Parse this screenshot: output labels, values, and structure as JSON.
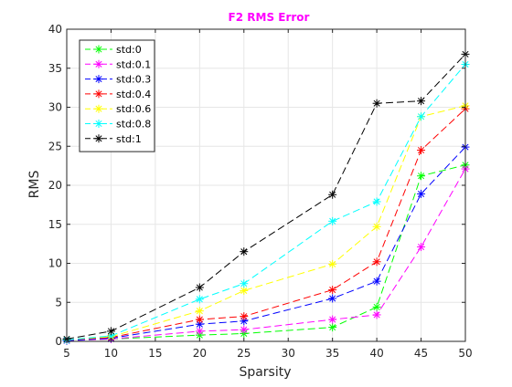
{
  "chart_data": {
    "type": "line",
    "title": "F2 RMS Error",
    "xlabel": "Sparsity",
    "ylabel": "RMS",
    "xlim": [
      5,
      50
    ],
    "ylim": [
      0,
      40
    ],
    "x_ticks": [
      5,
      10,
      15,
      20,
      25,
      30,
      35,
      40,
      45,
      50
    ],
    "y_ticks": [
      0,
      5,
      10,
      15,
      20,
      25,
      30,
      35,
      40
    ],
    "x_tick_labels": [
      "5",
      "10",
      "15",
      "20",
      "25",
      "30",
      "35",
      "40",
      "45",
      "50"
    ],
    "y_tick_labels": [
      "0",
      "5",
      "10",
      "15",
      "20",
      "25",
      "30",
      "35",
      "40"
    ],
    "grid": true,
    "legend_position": "top-left",
    "line_style": "dashed",
    "marker": "asterisk",
    "title_color": "#ff00ff",
    "x": [
      5,
      10,
      20,
      25,
      35,
      40,
      45,
      50
    ],
    "series": [
      {
        "name": "std:0",
        "color": "#00ff00",
        "values": [
          0.1,
          0.3,
          0.8,
          1.0,
          1.8,
          4.4,
          21.2,
          22.6
        ]
      },
      {
        "name": "std:0.1",
        "color": "#ff00ff",
        "values": [
          0.1,
          0.3,
          1.3,
          1.5,
          2.8,
          3.4,
          12.1,
          22.1
        ]
      },
      {
        "name": "std:0.3",
        "color": "#0000ff",
        "values": [
          0.1,
          0.4,
          2.2,
          2.6,
          5.5,
          7.7,
          18.9,
          24.9
        ]
      },
      {
        "name": "std:0.4",
        "color": "#ff0000",
        "values": [
          0.2,
          0.5,
          2.8,
          3.2,
          6.6,
          10.2,
          24.5,
          29.8
        ]
      },
      {
        "name": "std:0.6",
        "color": "#ffff00",
        "values": [
          0.2,
          0.6,
          3.9,
          6.5,
          9.9,
          14.7,
          28.8,
          30.2
        ]
      },
      {
        "name": "std:0.8",
        "color": "#00ffff",
        "values": [
          0.2,
          0.7,
          5.4,
          7.4,
          15.4,
          17.9,
          28.8,
          35.5
        ]
      },
      {
        "name": "std:1",
        "color": "#000000",
        "values": [
          0.3,
          1.3,
          6.9,
          11.5,
          18.8,
          30.5,
          30.8,
          36.8
        ]
      }
    ]
  }
}
